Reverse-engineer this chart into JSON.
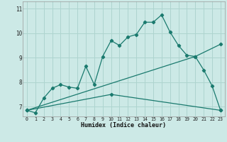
{
  "xlabel": "Humidex (Indice chaleur)",
  "background_color": "#cce9e6",
  "grid_color": "#aed4cf",
  "line_color": "#1a7a6e",
  "xlim": [
    -0.5,
    23.5
  ],
  "ylim": [
    6.6,
    11.3
  ],
  "xticks": [
    0,
    1,
    2,
    3,
    4,
    5,
    6,
    7,
    8,
    9,
    10,
    11,
    12,
    13,
    14,
    15,
    16,
    17,
    18,
    19,
    20,
    21,
    22,
    23
  ],
  "yticks": [
    7,
    8,
    9,
    10,
    11
  ],
  "line1_x": [
    0,
    1,
    2,
    3,
    4,
    5,
    6,
    7,
    8,
    9,
    10,
    11,
    12,
    13,
    14,
    15,
    16,
    17,
    18,
    19,
    20,
    21,
    22,
    23
  ],
  "line1_y": [
    6.85,
    6.75,
    7.35,
    7.75,
    7.9,
    7.8,
    7.75,
    8.65,
    7.9,
    9.05,
    9.7,
    9.5,
    9.85,
    9.95,
    10.45,
    10.45,
    10.75,
    10.05,
    9.5,
    9.1,
    9.05,
    8.5,
    7.85,
    6.85
  ],
  "line2_x": [
    0,
    20,
    23
  ],
  "line2_y": [
    6.85,
    9.05,
    9.55
  ],
  "line3_x": [
    0,
    10,
    23
  ],
  "line3_y": [
    6.85,
    7.5,
    6.85
  ]
}
